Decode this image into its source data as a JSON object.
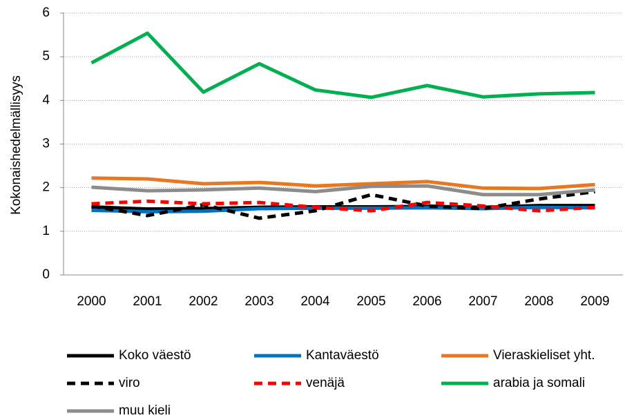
{
  "chart_data": {
    "type": "line",
    "y_label": "Kokonaishedelmällisyys",
    "categories": [
      "2000",
      "2001",
      "2002",
      "2003",
      "2004",
      "2005",
      "2006",
      "2007",
      "2008",
      "2009"
    ],
    "ylim": [
      0,
      6
    ],
    "yticks": [
      0,
      1,
      2,
      3,
      4,
      5,
      6
    ],
    "grid": true,
    "legend": "bottom",
    "series": [
      {
        "name": "Koko väestö",
        "color": "#000000",
        "dash": false,
        "values": [
          1.56,
          1.51,
          1.52,
          1.55,
          1.56,
          1.56,
          1.57,
          1.55,
          1.59,
          1.59
        ]
      },
      {
        "name": "Kantaväestö",
        "color": "#0070c0",
        "dash": false,
        "values": [
          1.48,
          1.45,
          1.46,
          1.52,
          1.53,
          1.53,
          1.54,
          1.52,
          1.55,
          1.54
        ]
      },
      {
        "name": "Vieraskieliset yht.",
        "color": "#e87722",
        "dash": false,
        "values": [
          2.22,
          2.2,
          2.09,
          2.12,
          2.04,
          2.09,
          2.14,
          1.99,
          1.98,
          2.07
        ]
      },
      {
        "name": "viro",
        "color": "#000000",
        "dash": true,
        "values": [
          1.58,
          1.36,
          1.61,
          1.3,
          1.47,
          1.84,
          1.58,
          1.52,
          1.74,
          1.91
        ]
      },
      {
        "name": "venäjä",
        "color": "#ff0000",
        "dash": true,
        "values": [
          1.63,
          1.69,
          1.63,
          1.66,
          1.55,
          1.47,
          1.66,
          1.58,
          1.47,
          1.55
        ]
      },
      {
        "name": "arabia ja somali",
        "color": "#00b050",
        "dash": false,
        "values": [
          4.86,
          5.54,
          4.19,
          4.84,
          4.24,
          4.07,
          4.34,
          4.08,
          4.15,
          4.18
        ]
      },
      {
        "name": "muu kieli",
        "color": "#8c8c8c",
        "dash": false,
        "values": [
          2.01,
          1.93,
          1.95,
          1.99,
          1.91,
          2.03,
          2.04,
          1.84,
          1.84,
          1.95
        ]
      }
    ]
  }
}
